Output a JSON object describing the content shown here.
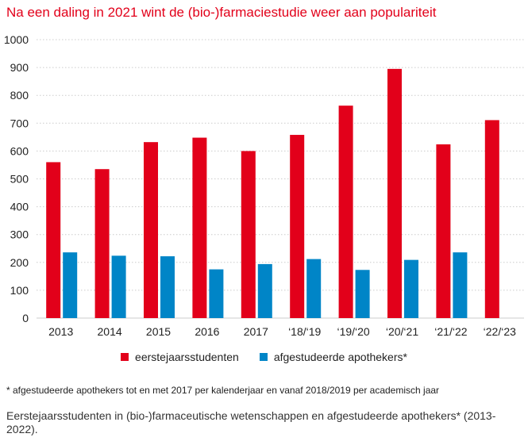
{
  "title": "Na een daling in 2021 wint de (bio-)farmaciestudie weer aan populariteit",
  "legend": {
    "series1": "eerstejaarsstudenten",
    "series2": "afgestudeerde apothekers*"
  },
  "footnote": "* afgestudeerde apothekers tot en met 2017 per kalenderjaar en vanaf 2018/2019 per academisch jaar",
  "caption": "Eerstejaarsstudenten in (bio-)farmaceutische wetenschappen en afgestudeerde apothekers* (2013-2022).",
  "colors": {
    "series1": "#e2001a",
    "series2": "#0085c7",
    "grid": "#cccccc"
  },
  "chart_data": {
    "type": "bar",
    "title": "Na een daling in 2021 wint de (bio-)farmaciestudie weer aan populariteit",
    "categories": [
      "2013",
      "2014",
      "2015",
      "2016",
      "2017",
      "‘18/‘19",
      "‘19/‘20",
      "‘20/‘21",
      "‘21/‘22",
      "‘22/‘23"
    ],
    "series": [
      {
        "name": "eerstejaarsstudenten",
        "values": [
          560,
          535,
          632,
          648,
          600,
          658,
          763,
          895,
          624,
          711
        ]
      },
      {
        "name": "afgestudeerde apothekers*",
        "values": [
          236,
          224,
          222,
          175,
          194,
          212,
          173,
          209,
          236,
          null
        ]
      }
    ],
    "yticks": [
      0,
      100,
      200,
      300,
      400,
      500,
      600,
      700,
      800,
      900,
      1000
    ],
    "ylim": [
      0,
      1000
    ],
    "grid": true,
    "legend_position": "bottom"
  }
}
